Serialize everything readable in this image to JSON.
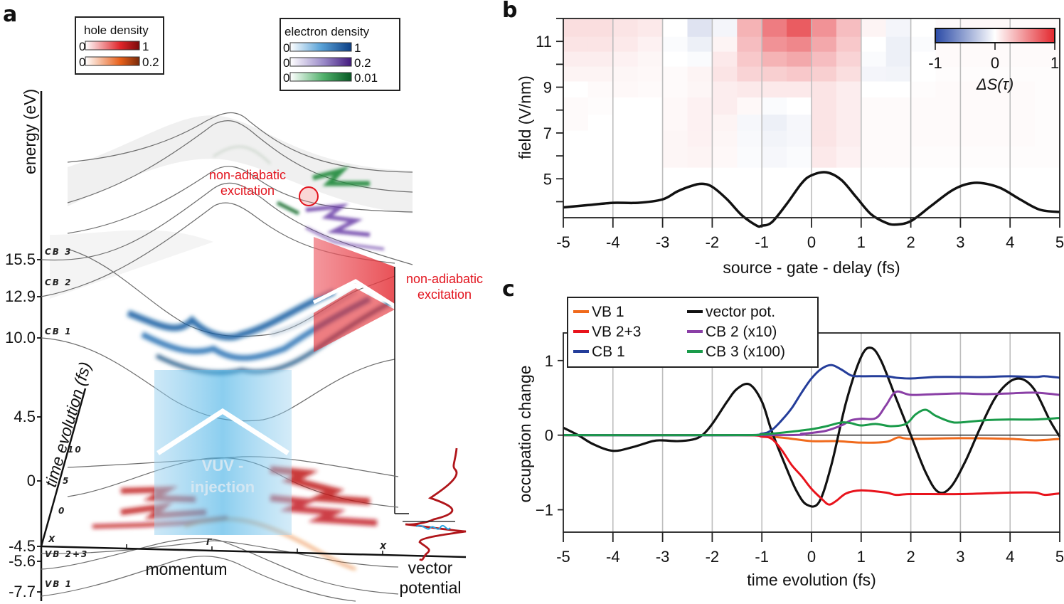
{
  "panel_a": {
    "label": "a",
    "hole_legend": {
      "title": "hole density",
      "scales": [
        {
          "min": "0",
          "max": "1",
          "color_from": "#ffffff",
          "color_to": "#8b0a0a",
          "color_mid": "#e0252a"
        },
        {
          "min": "0",
          "max": "0.2",
          "color_from": "#ffffff",
          "color_to": "#8b2a0a",
          "color_mid": "#e8601a"
        }
      ]
    },
    "electron_legend": {
      "title": "electron density",
      "scales": [
        {
          "min": "0",
          "max": "1",
          "color_from": "#ffffff",
          "color_to": "#0b3f86",
          "color_mid": "#3f8fd0"
        },
        {
          "min": "0",
          "max": "0.2",
          "color_from": "#ffffff",
          "color_to": "#4a1e8a",
          "color_mid": "#8d7ac2"
        },
        {
          "min": "0",
          "max": "0.01",
          "color_from": "#ffffff",
          "color_to": "#0a5a2a",
          "color_mid": "#48a860"
        }
      ]
    },
    "energy_axis_label": "energy (eV)",
    "energy_ticks": [
      "15.5",
      "12.9",
      "10.0",
      "4.5",
      "0",
      "-4.5",
      "-5.6",
      "-7.7"
    ],
    "band_labels": [
      "CB 3",
      "CB 2",
      "CB 1",
      "VB 2+3",
      "VB 1"
    ],
    "time_axis_label": "time evolution (fs)",
    "time_ticks": [
      "10",
      "5",
      "0"
    ],
    "momentum_label": "momentum",
    "momentum_points": [
      "X",
      "Γ",
      "X"
    ],
    "annotation_top": [
      "non-adiabatic",
      "excitation"
    ],
    "annotation_right": [
      "non-adiabatic",
      "excitation"
    ],
    "vuv_label": [
      "VUV -",
      "injection"
    ],
    "vector_potential_label": [
      "vector",
      "potential"
    ]
  },
  "chart_data": [
    {
      "id": "b",
      "type": "heatmap",
      "panel_label": "b",
      "xlabel": "source - gate - delay (fs)",
      "ylabel": "field (V/nm)",
      "xlim": [
        -5,
        5
      ],
      "ylim": [
        3.3,
        12.0
      ],
      "xticks": [
        "-5",
        "-4",
        "-3",
        "-2",
        "-1",
        "0",
        "1",
        "2",
        "3",
        "4",
        "5"
      ],
      "yticks": [
        "5",
        "7",
        "9",
        "11"
      ],
      "grid": "vertical",
      "colorbar": {
        "label": "ΔS(τ)",
        "ticks": [
          "-1",
          "0",
          "1"
        ],
        "range": [
          -1,
          1
        ],
        "location": "top-right"
      },
      "heatmap_rows_field": [
        11.5,
        10.9,
        10.2,
        9.6,
        8.9,
        8.2,
        7.4,
        6.8,
        6.0
      ],
      "heatmap_cols_delay": [
        -4.75,
        -4.25,
        -3.75,
        -3.25,
        -2.75,
        -2.25,
        -1.75,
        -1.25,
        -0.75,
        -0.25,
        0.25,
        0.75,
        1.25,
        1.75,
        2.25,
        2.75,
        3.25,
        3.75,
        4.25,
        4.75
      ],
      "heatmap_values": [
        [
          0.15,
          0.15,
          0.12,
          0.1,
          0.0,
          -0.15,
          -0.05,
          0.35,
          0.6,
          0.75,
          0.5,
          0.3,
          0.05,
          -0.05,
          0.0,
          0.02,
          0.03,
          0.03,
          0.02,
          0.02
        ],
        [
          0.12,
          0.12,
          0.1,
          0.06,
          -0.02,
          -0.08,
          0.05,
          0.3,
          0.5,
          0.55,
          0.4,
          0.25,
          0.0,
          -0.08,
          -0.02,
          0.02,
          0.02,
          0.02,
          0.02,
          0.02
        ],
        [
          0.08,
          0.08,
          0.06,
          0.04,
          0.0,
          -0.02,
          0.1,
          0.25,
          0.35,
          0.4,
          0.3,
          0.2,
          -0.02,
          -0.08,
          0.0,
          0.02,
          0.02,
          0.02,
          0.02,
          0.02
        ],
        [
          0.05,
          0.05,
          0.04,
          0.03,
          0.02,
          0.05,
          0.12,
          0.2,
          0.22,
          0.25,
          0.22,
          0.15,
          -0.05,
          -0.06,
          0.0,
          0.01,
          0.01,
          0.01,
          0.01,
          0.01
        ],
        [
          0.0,
          0.02,
          0.03,
          0.02,
          0.02,
          0.04,
          0.08,
          0.1,
          0.1,
          0.1,
          0.12,
          0.08,
          0.0,
          0.0,
          0.01,
          0.02,
          0.02,
          0.02,
          0.02,
          0.01
        ],
        [
          0.02,
          0.01,
          0.0,
          0.0,
          0.03,
          0.06,
          0.08,
          0.03,
          -0.02,
          0.0,
          0.12,
          0.08,
          0.02,
          0.02,
          0.02,
          0.02,
          0.02,
          0.02,
          0.02,
          0.01
        ],
        [
          0.02,
          0.0,
          0.0,
          0.0,
          0.03,
          0.06,
          0.05,
          -0.04,
          -0.08,
          -0.04,
          0.12,
          0.08,
          0.02,
          0.02,
          0.02,
          0.02,
          0.02,
          0.02,
          0.02,
          0.01
        ],
        [
          0.0,
          0.0,
          0.0,
          0.0,
          0.04,
          0.06,
          0.04,
          -0.03,
          -0.06,
          -0.04,
          0.12,
          0.08,
          0.02,
          0.02,
          0.02,
          0.02,
          0.02,
          0.02,
          0.02,
          0.01
        ],
        [
          0.0,
          0.0,
          0.0,
          0.0,
          0.04,
          0.05,
          0.03,
          -0.02,
          -0.04,
          -0.02,
          0.1,
          0.06,
          0.02,
          0.02,
          0.01,
          0.01,
          0.01,
          0.01,
          0.01,
          0.01
        ]
      ],
      "overlay_line": {
        "name": "field envelope",
        "color": "#111111",
        "x": [
          -5,
          -4.5,
          -4,
          -3.5,
          -3,
          -2.7,
          -2.4,
          -2.2,
          -2.0,
          -1.7,
          -1.4,
          -1.1,
          -1.0,
          -0.8,
          -0.5,
          -0.2,
          0.0,
          0.3,
          0.6,
          0.9,
          1.2,
          1.5,
          1.7,
          2.0,
          2.4,
          2.8,
          3.1,
          3.4,
          3.8,
          4.2,
          4.6,
          5.0
        ],
        "y": [
          3.75,
          3.85,
          3.95,
          3.95,
          4.1,
          4.45,
          4.7,
          4.78,
          4.65,
          4.1,
          3.4,
          2.95,
          2.95,
          3.1,
          3.9,
          4.8,
          5.15,
          5.28,
          4.95,
          4.2,
          3.45,
          3.08,
          3.0,
          3.15,
          3.8,
          4.45,
          4.75,
          4.82,
          4.6,
          4.1,
          3.65,
          3.55
        ]
      }
    },
    {
      "id": "c",
      "type": "line",
      "panel_label": "c",
      "xlabel": "time evolution (fs)",
      "ylabel": "occupation change",
      "xlim": [
        -5,
        5
      ],
      "ylim": [
        -1.3,
        1.37
      ],
      "xticks": [
        "-5",
        "-4",
        "-3",
        "-2",
        "-1",
        "0",
        "1",
        "2",
        "3",
        "4",
        "5"
      ],
      "yticks": [
        "1",
        "0",
        "−1"
      ],
      "ytick_values": [
        1,
        0,
        -1
      ],
      "grid": "vertical",
      "legend_location": "top-left",
      "series": [
        {
          "name": "VB 1",
          "color": "#f06a1c",
          "x": [
            -5,
            -1.5,
            -1,
            -0.5,
            0,
            0.5,
            1,
            1.5,
            1.75,
            2,
            3,
            4,
            4.5,
            5
          ],
          "y": [
            0,
            0,
            -0.01,
            -0.04,
            -0.08,
            -0.08,
            -0.1,
            -0.09,
            -0.03,
            -0.05,
            -0.04,
            -0.05,
            -0.07,
            -0.05
          ]
        },
        {
          "name": "vector pot.",
          "color": "#111111",
          "x": [
            -5,
            -4.7,
            -4.4,
            -4.0,
            -3.6,
            -3.2,
            -3.0,
            -2.7,
            -2.4,
            -2.2,
            -2.0,
            -1.7,
            -1.5,
            -1.25,
            -1.0,
            -0.8,
            -0.5,
            -0.3,
            -0.1,
            0.15,
            0.4,
            0.7,
            1.0,
            1.2,
            1.4,
            1.7,
            2.0,
            2.3,
            2.55,
            2.8,
            3.1,
            3.4,
            3.7,
            4.0,
            4.25,
            4.5,
            4.8,
            5.0
          ],
          "y": [
            0.1,
            0.0,
            -0.12,
            -0.21,
            -0.16,
            -0.08,
            -0.07,
            -0.08,
            -0.06,
            0.0,
            0.15,
            0.45,
            0.62,
            0.68,
            0.45,
            0.05,
            -0.45,
            -0.75,
            -0.93,
            -0.9,
            -0.4,
            0.45,
            1.05,
            1.17,
            1.0,
            0.5,
            0.0,
            -0.5,
            -0.76,
            -0.7,
            -0.35,
            0.1,
            0.5,
            0.72,
            0.75,
            0.6,
            0.2,
            -0.02
          ]
        },
        {
          "name": "VB 2+3",
          "color": "#e8131c",
          "x": [
            -5,
            -1.5,
            -1.0,
            -0.8,
            -0.6,
            -0.4,
            -0.2,
            0.0,
            0.2,
            0.35,
            0.5,
            0.7,
            1.0,
            1.5,
            1.7,
            2.0,
            3.0,
            4.0,
            4.5,
            4.7,
            5.0
          ],
          "y": [
            0,
            0,
            -0.02,
            -0.05,
            -0.2,
            -0.4,
            -0.55,
            -0.72,
            -0.85,
            -0.93,
            -0.88,
            -0.78,
            -0.74,
            -0.77,
            -0.8,
            -0.79,
            -0.79,
            -0.77,
            -0.77,
            -0.8,
            -0.78
          ]
        },
        {
          "name": "CB 2 (x10)",
          "color": "#8a3fa6",
          "x": [
            -5,
            -0.6,
            -0.2,
            0.0,
            0.3,
            0.6,
            0.8,
            1.0,
            1.3,
            1.5,
            1.7,
            2.0,
            2.5,
            3.0,
            3.5,
            4.0,
            4.5,
            5.0
          ],
          "y": [
            0,
            0,
            0.02,
            0.03,
            0.06,
            0.13,
            0.2,
            0.22,
            0.23,
            0.4,
            0.58,
            0.54,
            0.55,
            0.56,
            0.55,
            0.56,
            0.57,
            0.54
          ]
        },
        {
          "name": "CB 1",
          "color": "#243d9a",
          "x": [
            -5,
            -1.5,
            -1.0,
            -0.8,
            -0.6,
            -0.4,
            -0.2,
            0.0,
            0.2,
            0.4,
            0.6,
            0.8,
            1.0,
            1.5,
            1.7,
            2.0,
            2.5,
            3.0,
            3.5,
            4.0,
            4.5,
            4.7,
            5.0
          ],
          "y": [
            0,
            0,
            0.02,
            0.07,
            0.2,
            0.36,
            0.57,
            0.76,
            0.89,
            0.94,
            0.88,
            0.8,
            0.79,
            0.79,
            0.77,
            0.76,
            0.78,
            0.78,
            0.78,
            0.79,
            0.78,
            0.79,
            0.77
          ]
        },
        {
          "name": "CB 3 (x100)",
          "color": "#1a9b4a",
          "x": [
            -5,
            -1.5,
            -1.0,
            -0.5,
            0.0,
            0.3,
            0.6,
            0.8,
            1.0,
            1.3,
            1.6,
            1.9,
            2.1,
            2.3,
            2.5,
            2.8,
            3.0,
            3.5,
            4.0,
            4.5,
            5.0
          ],
          "y": [
            0,
            0,
            0.01,
            0.04,
            0.08,
            0.12,
            0.17,
            0.16,
            0.13,
            0.15,
            0.12,
            0.15,
            0.28,
            0.34,
            0.26,
            0.18,
            0.17,
            0.2,
            0.21,
            0.21,
            0.23
          ]
        }
      ]
    }
  ]
}
